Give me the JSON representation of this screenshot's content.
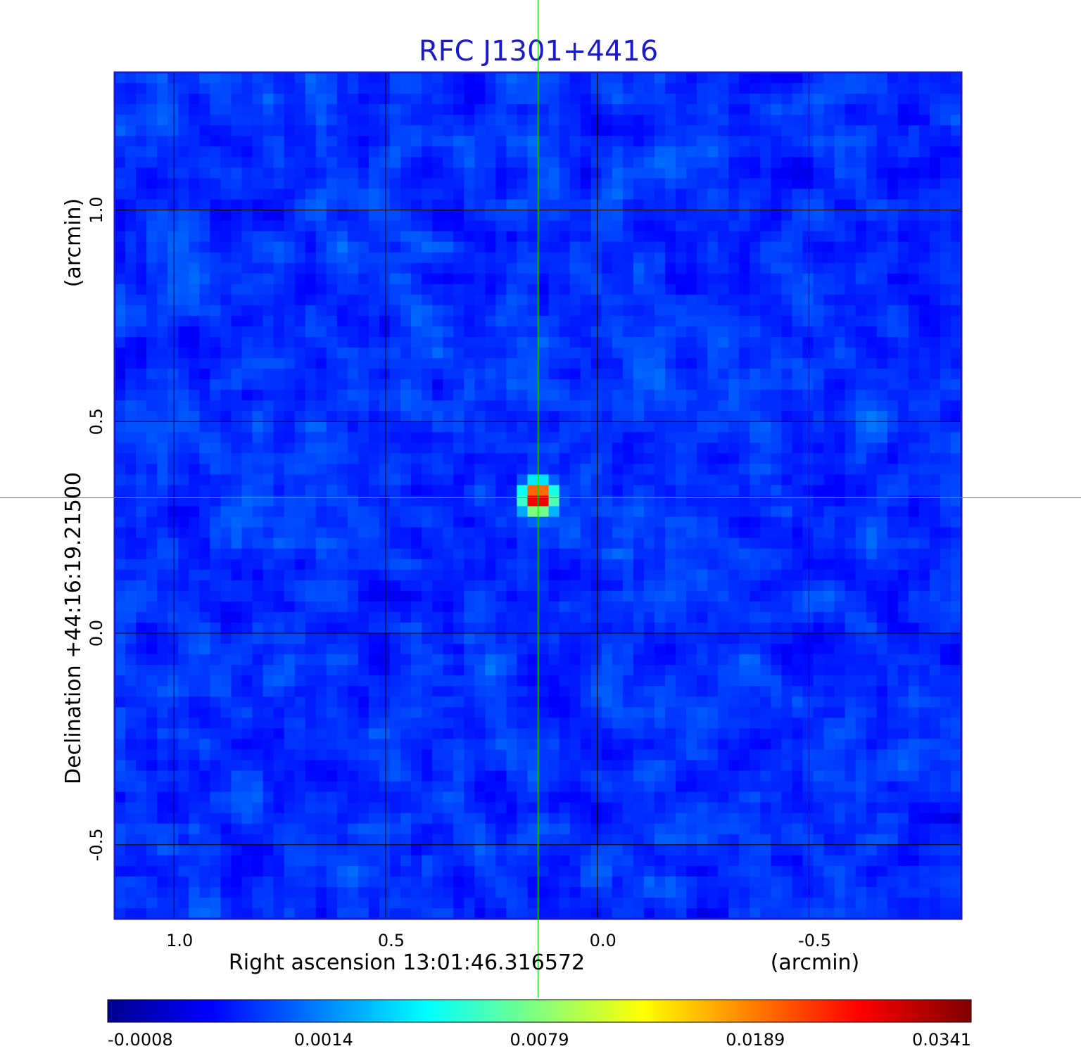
{
  "chart_data": {
    "type": "heatmap",
    "title": "RFC J1301+4416",
    "xlabel": "Right ascension  13:01:46.316572",
    "xunit": "(arcmin)",
    "ylabel": "Declination  +44:16:19.21500",
    "yunit": "(arcmin)",
    "xlim": [
      1.14,
      -0.86
    ],
    "ylim": [
      -0.675,
      1.325
    ],
    "x_ticks": [
      1.0,
      0.5,
      0.0,
      -0.5
    ],
    "x_tick_labels": [
      "1.0",
      "0.5",
      "0.0",
      "-0.5"
    ],
    "y_ticks": [
      -0.5,
      0.0,
      0.5,
      1.0
    ],
    "y_tick_labels": [
      "-0.5",
      "0.0",
      "0.5",
      "1.0"
    ],
    "grid": true,
    "crosshair": {
      "x": 0.14,
      "y": 0.32,
      "color": "#00e000"
    },
    "source_peak": {
      "x": 0.14,
      "y": 0.32,
      "value": 0.0341
    },
    "colorscale": {
      "name": "jet",
      "tick_labels": [
        "-0.0008",
        "0.0014",
        "0.0079",
        "0.0189",
        "0.0341"
      ],
      "tick_values": [
        -0.0008,
        0.0014,
        0.0079,
        0.0189,
        0.0341
      ],
      "colors": [
        "#00008f",
        "#0000ff",
        "#00ffff",
        "#ffff00",
        "#ff0000",
        "#800000"
      ]
    },
    "colors": {
      "title": "#1a1acc",
      "frame": "#1a1acc",
      "grid": "#000000"
    }
  }
}
